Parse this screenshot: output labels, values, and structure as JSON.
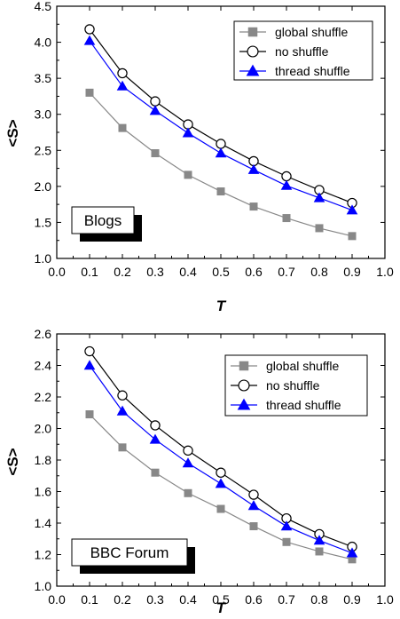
{
  "chart_data": [
    {
      "type": "line",
      "xlabel": "T",
      "ylabel": "<S>",
      "xlim": [
        0.0,
        1.0
      ],
      "ylim": [
        1.0,
        4.5
      ],
      "x_ticks": [
        "0.0",
        "0.1",
        "0.2",
        "0.3",
        "0.4",
        "0.5",
        "0.6",
        "0.7",
        "0.8",
        "0.9",
        "1.0"
      ],
      "y_ticks": [
        "1.0",
        "1.5",
        "2.0",
        "2.5",
        "3.0",
        "3.5",
        "4.0",
        "4.5"
      ],
      "box_label": "Blogs",
      "legend_position": "top-right",
      "x": [
        0.1,
        0.2,
        0.3,
        0.4,
        0.5,
        0.6,
        0.7,
        0.8,
        0.9
      ],
      "series": [
        {
          "name": "global shuffle",
          "marker": "square",
          "color": "#888888",
          "values": [
            3.3,
            2.81,
            2.46,
            2.16,
            1.93,
            1.72,
            1.56,
            1.42,
            1.31
          ]
        },
        {
          "name": "no shuffle",
          "marker": "circle",
          "color": "#000000",
          "values": [
            4.18,
            3.57,
            3.18,
            2.86,
            2.59,
            2.35,
            2.14,
            1.95,
            1.77
          ]
        },
        {
          "name": "thread shuffle",
          "marker": "triangle",
          "color": "#0000ff",
          "values": [
            4.02,
            3.39,
            3.05,
            2.74,
            2.46,
            2.23,
            2.01,
            1.84,
            1.67
          ]
        }
      ]
    },
    {
      "type": "line",
      "xlabel": "T",
      "ylabel": "<S>",
      "xlim": [
        0.0,
        1.0
      ],
      "ylim": [
        1.0,
        2.6
      ],
      "x_ticks": [
        "0.0",
        "0.1",
        "0.2",
        "0.3",
        "0.4",
        "0.5",
        "0.6",
        "0.7",
        "0.8",
        "0.9",
        "1.0"
      ],
      "y_ticks": [
        "1.0",
        "1.2",
        "1.4",
        "1.6",
        "1.8",
        "2.0",
        "2.2",
        "2.4",
        "2.6"
      ],
      "box_label": "BBC Forum",
      "legend_position": "top-right",
      "x": [
        0.1,
        0.2,
        0.3,
        0.4,
        0.5,
        0.6,
        0.7,
        0.8,
        0.9
      ],
      "series": [
        {
          "name": "global shuffle",
          "marker": "square",
          "color": "#888888",
          "values": [
            2.09,
            1.88,
            1.72,
            1.59,
            1.49,
            1.38,
            1.28,
            1.22,
            1.17
          ]
        },
        {
          "name": "no shuffle",
          "marker": "circle",
          "color": "#000000",
          "values": [
            2.49,
            2.21,
            2.02,
            1.86,
            1.72,
            1.58,
            1.43,
            1.33,
            1.25
          ]
        },
        {
          "name": "thread shuffle",
          "marker": "triangle",
          "color": "#0000ff",
          "values": [
            2.4,
            2.11,
            1.93,
            1.78,
            1.65,
            1.51,
            1.38,
            1.29,
            1.21
          ]
        }
      ]
    }
  ]
}
